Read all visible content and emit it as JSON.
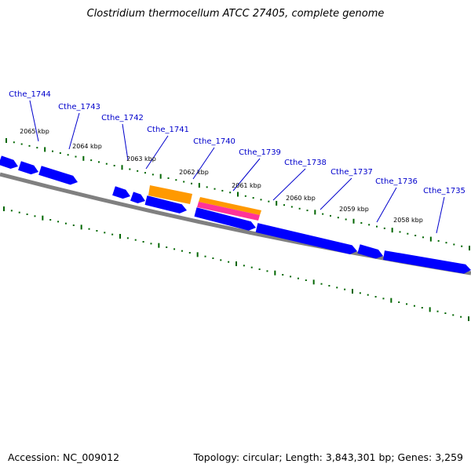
{
  "title": "Clostridium thermocellum ATCC 27405, complete genome",
  "footer": {
    "accession": "Accession: NC_009012",
    "summary": "Topology: circular; Length: 3,843,301 bp; Genes: 3,259"
  },
  "colors": {
    "backbone": "#808080",
    "gene_forward": "#0000ff",
    "gene_highlight": "#ff9900",
    "gene_pink": "#ff3399",
    "tick": "#006600",
    "label": "#0000cc"
  },
  "gene_labels": [
    "Cthe_1744",
    "Cthe_1743",
    "Cthe_1742",
    "Cthe_1741",
    "Cthe_1740",
    "Cthe_1739",
    "Cthe_1738",
    "Cthe_1737",
    "Cthe_1736",
    "Cthe_1735"
  ],
  "kbp_labels": [
    "2065 kbp",
    "2064 kbp",
    "2063 kbp",
    "2062 kbp",
    "2061 kbp",
    "2060 kbp",
    "2059 kbp",
    "2058 kbp"
  ]
}
